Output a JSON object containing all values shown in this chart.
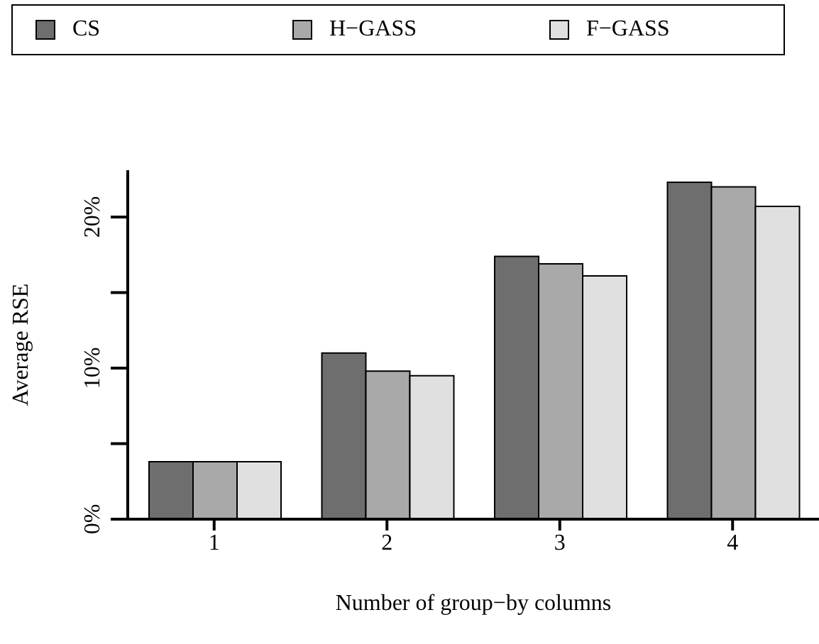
{
  "chart_data": {
    "type": "bar",
    "xlabel": "Number of group−by columns",
    "ylabel": "Average RSE",
    "categories": [
      "1",
      "2",
      "3",
      "4"
    ],
    "series": [
      {
        "name": "CS",
        "color": "#6e6e6e",
        "values": [
          3.8,
          11.0,
          17.4,
          22.3
        ]
      },
      {
        "name": "H−GASS",
        "color": "#a9a9a9",
        "values": [
          3.8,
          9.8,
          16.9,
          22.0
        ]
      },
      {
        "name": "F−GASS",
        "color": "#e0e0e0",
        "values": [
          3.8,
          9.5,
          16.1,
          20.7
        ]
      }
    ],
    "ylim": [
      0,
      23.1
    ],
    "yticks": [
      {
        "value": 0,
        "label": "0%"
      },
      {
        "value": 5,
        "label": null
      },
      {
        "value": 10,
        "label": "10%"
      },
      {
        "value": 15,
        "label": null
      },
      {
        "value": 20,
        "label": "20%"
      }
    ],
    "grid": false,
    "legend": "top"
  }
}
